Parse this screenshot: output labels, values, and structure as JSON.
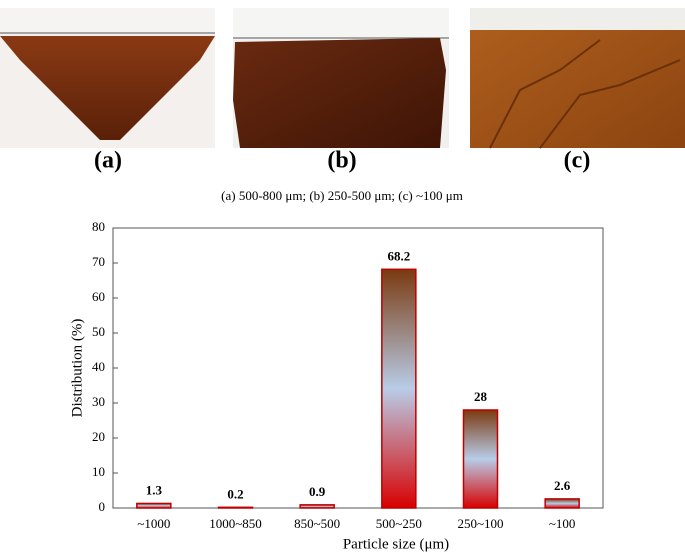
{
  "photos": [
    {
      "label": "(a)"
    },
    {
      "label": "(b)"
    },
    {
      "label": "(c)"
    }
  ],
  "caption": "(a) 500-800 μm; (b) 250-500 μm; (c) ~100 μm",
  "chart_data": {
    "type": "bar",
    "x_label": "Particle size (μm)",
    "y_label": "Distribution (%)",
    "categories": [
      "~1000",
      "1000~850",
      "850~500",
      "500~250",
      "250~100",
      "~100"
    ],
    "values": [
      1.3,
      0.2,
      0.9,
      68.2,
      28,
      2.6
    ],
    "color": "#c00000",
    "gradient": [
      "#7a3a10",
      "#b8cce8",
      "#d80000"
    ],
    "ylim": [
      0,
      80
    ],
    "yticks": [
      0,
      10,
      20,
      30,
      40,
      50,
      60,
      70,
      80
    ],
    "grid": false
  }
}
